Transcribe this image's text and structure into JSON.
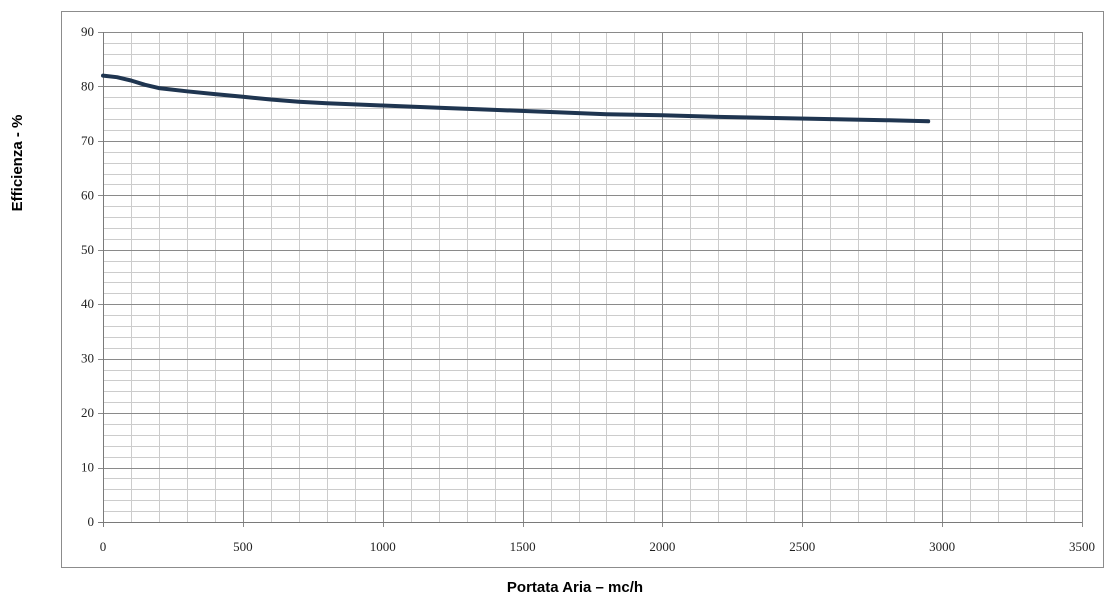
{
  "chart_data": {
    "type": "line",
    "title": "",
    "xlabel": "Portata Aria – mc/h",
    "ylabel": "Efficienza - %",
    "xlim": [
      0,
      3500
    ],
    "ylim": [
      0,
      90
    ],
    "x_ticks": [
      "0",
      "500",
      "1000",
      "1500",
      "2000",
      "2500",
      "3000",
      "3500"
    ],
    "y_ticks": [
      "0",
      "10",
      "20",
      "30",
      "40",
      "50",
      "60",
      "70",
      "80",
      "90"
    ],
    "grid": true,
    "legend": "none",
    "series": [
      {
        "color": "#1f3550",
        "x": [
          0,
          50,
          100,
          150,
          200,
          300,
          400,
          500,
          600,
          700,
          800,
          900,
          1000,
          1200,
          1400,
          1600,
          1800,
          2000,
          2200,
          2400,
          2600,
          2800,
          2950
        ],
        "y": [
          82.0,
          81.7,
          81.1,
          80.3,
          79.7,
          79.1,
          78.6,
          78.1,
          77.6,
          77.2,
          76.9,
          76.7,
          76.5,
          76.1,
          75.7,
          75.3,
          74.9,
          74.7,
          74.4,
          74.2,
          74.0,
          73.8,
          73.6
        ]
      }
    ]
  }
}
